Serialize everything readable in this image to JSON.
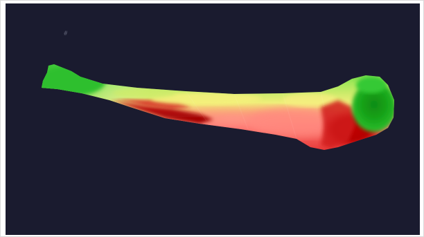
{
  "scene": {
    "background_color": "#1a1b2f",
    "frame_border_color": "#d9d9d9",
    "object": "bone-model",
    "colormap": {
      "low": "#1f9e1f",
      "mid": "#e8ef6a",
      "high": "#ff6a66",
      "deep": "#b00000"
    },
    "corner_glyph": "#"
  }
}
